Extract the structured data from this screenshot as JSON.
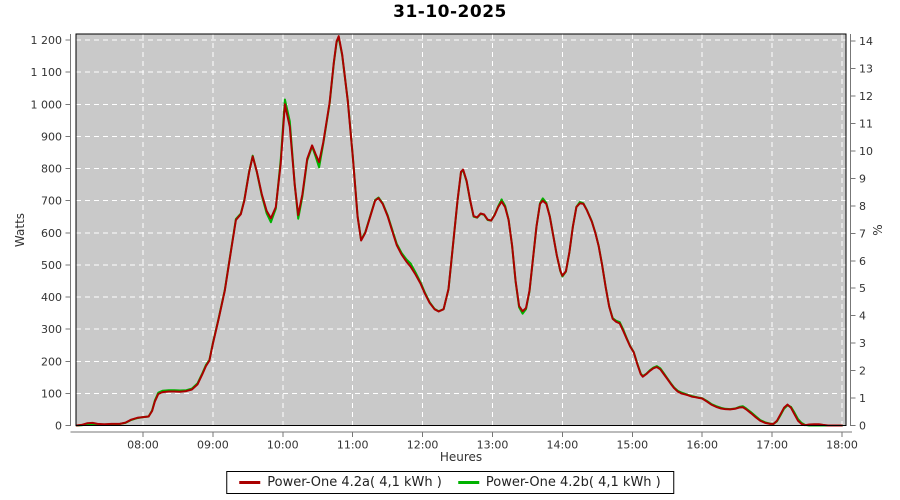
{
  "chart_data": {
    "type": "line",
    "title": "31-10-2025",
    "xlabel": "Heures",
    "ylabel_left": "Watts",
    "ylabel_right": "%",
    "plot_bg": "#c9c9c9",
    "grid_color": "#ffffff",
    "axis_color": "#777777",
    "border_color": "#000000",
    "legend_position": "bottom",
    "xlim_hours": [
      7.042,
      18.057
    ],
    "ylim_left": [
      0,
      1219
    ],
    "ylim_right": [
      0,
      14.26
    ],
    "x_ticks": {
      "hours": [
        8,
        9,
        10,
        11,
        12,
        13,
        14,
        15,
        16,
        17,
        18
      ],
      "labels": [
        "08:00",
        "09:00",
        "10:00",
        "11:00",
        "12:00",
        "13:00",
        "14:00",
        "15:00",
        "16:00",
        "17:00",
        "18:00"
      ]
    },
    "y_ticks_left": {
      "values": [
        0,
        100,
        200,
        300,
        400,
        500,
        600,
        700,
        800,
        900,
        1000,
        1100,
        1200
      ],
      "labels": [
        "0",
        "100",
        "200",
        "300",
        "400",
        "500",
        "600",
        "700",
        "800",
        "900",
        "1 000",
        "1 100",
        "1 200"
      ]
    },
    "y_ticks_right": {
      "values": [
        0,
        1,
        2,
        3,
        4,
        5,
        6,
        7,
        8,
        9,
        10,
        11,
        12,
        13,
        14
      ],
      "labels": [
        "0",
        "1",
        "2",
        "3",
        "4",
        "5",
        "6",
        "7",
        "8",
        "9",
        "10",
        "11",
        "12",
        "13",
        "14"
      ]
    },
    "x_hours": [
      7.05,
      7.12,
      7.2,
      7.28,
      7.35,
      7.45,
      7.55,
      7.67,
      7.75,
      7.83,
      7.92,
      8.0,
      8.08,
      8.13,
      8.17,
      8.22,
      8.28,
      8.37,
      8.45,
      8.53,
      8.62,
      8.7,
      8.78,
      8.85,
      8.9,
      8.95,
      9.0,
      9.08,
      9.17,
      9.25,
      9.33,
      9.4,
      9.45,
      9.52,
      9.57,
      9.63,
      9.7,
      9.77,
      9.83,
      9.9,
      9.97,
      10.03,
      10.1,
      10.17,
      10.22,
      10.28,
      10.35,
      10.42,
      10.47,
      10.52,
      10.58,
      10.67,
      10.73,
      10.77,
      10.8,
      10.85,
      10.93,
      11.0,
      11.07,
      11.12,
      11.18,
      11.25,
      11.32,
      11.37,
      11.43,
      11.5,
      11.57,
      11.63,
      11.7,
      11.77,
      11.83,
      11.9,
      11.97,
      12.03,
      12.1,
      12.17,
      12.23,
      12.3,
      12.37,
      12.43,
      12.5,
      12.55,
      12.58,
      12.63,
      12.68,
      12.73,
      12.78,
      12.83,
      12.88,
      12.93,
      12.98,
      13.03,
      13.08,
      13.13,
      13.18,
      13.23,
      13.28,
      13.33,
      13.38,
      13.43,
      13.48,
      13.53,
      13.58,
      13.63,
      13.68,
      13.72,
      13.77,
      13.82,
      13.87,
      13.92,
      13.97,
      14.0,
      14.05,
      14.1,
      14.15,
      14.2,
      14.25,
      14.3,
      14.35,
      14.42,
      14.47,
      14.52,
      14.57,
      14.62,
      14.67,
      14.72,
      14.77,
      14.82,
      14.87,
      14.92,
      14.97,
      15.02,
      15.07,
      15.12,
      15.15,
      15.2,
      15.25,
      15.3,
      15.35,
      15.4,
      15.45,
      15.5,
      15.55,
      15.6,
      15.65,
      15.7,
      15.75,
      15.8,
      15.85,
      15.9,
      15.95,
      16.0,
      16.07,
      16.13,
      16.2,
      16.27,
      16.33,
      16.4,
      16.47,
      16.53,
      16.58,
      16.63,
      16.7,
      16.77,
      16.83,
      16.9,
      16.97,
      17.02,
      17.07,
      17.12,
      17.17,
      17.22,
      17.27,
      17.32,
      17.37,
      17.42,
      17.47,
      17.53,
      17.6,
      17.67,
      17.73,
      17.8,
      17.9,
      18.0
    ],
    "series": [
      {
        "name": "Power-One 4.2a( 4,1 kWh )",
        "color": "#aa0000",
        "values": [
          0,
          2,
          7,
          8,
          5,
          4,
          5,
          5,
          9,
          18,
          24,
          26,
          28,
          45,
          75,
          98,
          104,
          106,
          106,
          105,
          107,
          112,
          128,
          160,
          185,
          202,
          255,
          330,
          420,
          530,
          640,
          658,
          700,
          790,
          838,
          790,
          720,
          668,
          645,
          680,
          815,
          1000,
          930,
          750,
          655,
          720,
          830,
          872,
          845,
          820,
          882,
          1005,
          1130,
          1196,
          1212,
          1155,
          1010,
          840,
          650,
          576,
          600,
          650,
          700,
          708,
          690,
          652,
          603,
          562,
          532,
          510,
          494,
          470,
          442,
          412,
          382,
          362,
          355,
          362,
          425,
          550,
          700,
          790,
          797,
          762,
          702,
          652,
          648,
          660,
          657,
          641,
          638,
          655,
          680,
          697,
          680,
          640,
          560,
          450,
          372,
          356,
          366,
          420,
          520,
          620,
          690,
          700,
          690,
          650,
          590,
          530,
          482,
          466,
          480,
          540,
          620,
          680,
          692,
          690,
          670,
          635,
          600,
          558,
          498,
          430,
          370,
          332,
          323,
          318,
          295,
          270,
          246,
          228,
          192,
          160,
          152,
          160,
          170,
          178,
          182,
          175,
          160,
          145,
          130,
          116,
          106,
          100,
          97,
          94,
          90,
          88,
          86,
          84,
          74,
          65,
          58,
          53,
          51,
          50,
          52,
          56,
          57,
          50,
          38,
          25,
          15,
          8,
          5,
          5,
          15,
          35,
          55,
          65,
          55,
          35,
          15,
          5,
          1,
          3,
          4,
          4,
          2,
          0,
          0,
          0
        ]
      },
      {
        "name": "Power-One 4.2b( 4,1 kWh )",
        "color": "#00b200",
        "values": [
          0,
          1,
          3,
          3,
          3,
          3,
          4,
          5,
          8,
          17,
          23,
          26,
          28,
          47,
          78,
          102,
          108,
          110,
          110,
          109,
          110,
          115,
          131,
          163,
          188,
          204,
          257,
          332,
          422,
          532,
          643,
          660,
          702,
          792,
          840,
          788,
          716,
          660,
          633,
          675,
          827,
          1015,
          947,
          752,
          644,
          713,
          825,
          869,
          838,
          804,
          878,
          1002,
          1127,
          1193,
          1208,
          1152,
          1012,
          842,
          652,
          578,
          602,
          652,
          702,
          710,
          692,
          655,
          607,
          566,
          537,
          517,
          504,
          476,
          446,
          415,
          384,
          363,
          356,
          362,
          424,
          549,
          699,
          788,
          795,
          760,
          701,
          650,
          647,
          659,
          656,
          640,
          638,
          656,
          682,
          704,
          684,
          641,
          560,
          448,
          368,
          348,
          362,
          418,
          519,
          620,
          692,
          707,
          693,
          652,
          591,
          530,
          481,
          464,
          479,
          539,
          620,
          681,
          696,
          692,
          671,
          636,
          601,
          559,
          499,
          431,
          371,
          334,
          326,
          322,
          299,
          272,
          247,
          229,
          194,
          162,
          154,
          161,
          172,
          180,
          185,
          178,
          163,
          147,
          132,
          118,
          108,
          103,
          99,
          95,
          92,
          89,
          87,
          85,
          76,
          67,
          60,
          55,
          52,
          51,
          53,
          58,
          60,
          53,
          41,
          28,
          17,
          10,
          6,
          5,
          13,
          32,
          52,
          63,
          58,
          40,
          20,
          8,
          2,
          0,
          0,
          0,
          0,
          0,
          0,
          0
        ]
      }
    ]
  }
}
